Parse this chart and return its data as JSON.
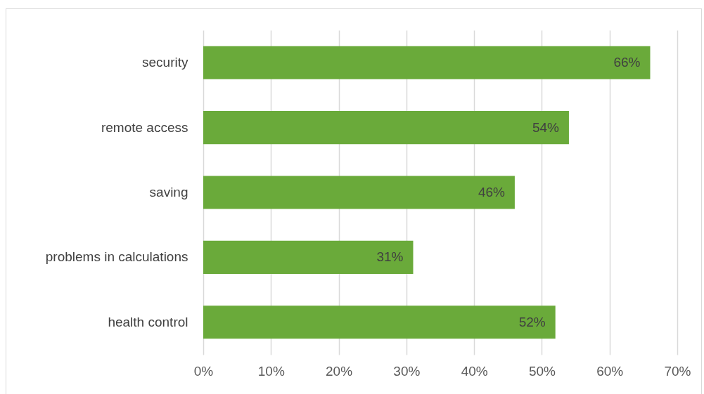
{
  "chart_data": {
    "type": "bar",
    "orientation": "horizontal",
    "categories": [
      "security",
      "remote access",
      "saving",
      "problems in calculations",
      "health control"
    ],
    "values": [
      66,
      54,
      46,
      31,
      52
    ],
    "value_labels": [
      "66%",
      "54%",
      "46%",
      "31%",
      "52%"
    ],
    "color": "#6aaa3a",
    "xlim": [
      0,
      70
    ],
    "xticks": [
      {
        "value": 0,
        "label": "0%"
      },
      {
        "value": 10,
        "label": "10%"
      },
      {
        "value": 20,
        "label": "20%"
      },
      {
        "value": 30,
        "label": "30%"
      },
      {
        "value": 40,
        "label": "40%"
      },
      {
        "value": 50,
        "label": "50%"
      },
      {
        "value": 60,
        "label": "60%"
      },
      {
        "value": 70,
        "label": "70%"
      }
    ],
    "grid": "x"
  }
}
